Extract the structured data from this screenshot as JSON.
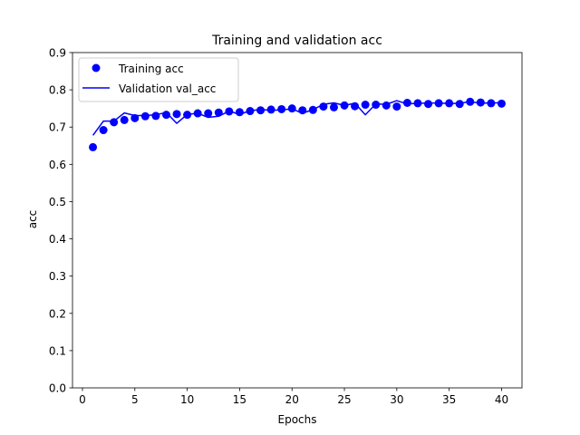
{
  "chart_data": {
    "type": "line",
    "title": "Training and validation acc",
    "xlabel": "Epochs",
    "ylabel": "acc",
    "xlim": [
      -0.95,
      41.95
    ],
    "ylim": [
      0,
      0.9
    ],
    "xticks": [
      0,
      5,
      10,
      15,
      20,
      25,
      30,
      35,
      40
    ],
    "yticks": [
      0.0,
      0.1,
      0.2,
      0.3,
      0.4,
      0.5,
      0.6,
      0.7,
      0.8,
      0.9
    ],
    "xtick_labels": [
      "0",
      "5",
      "10",
      "15",
      "20",
      "25",
      "30",
      "35",
      "40"
    ],
    "ytick_labels": [
      "0.0",
      "0.1",
      "0.2",
      "0.3",
      "0.4",
      "0.5",
      "0.6",
      "0.7",
      "0.8",
      "0.9"
    ],
    "grid": false,
    "legend_position": "top-left",
    "x": [
      1,
      2,
      3,
      4,
      5,
      6,
      7,
      8,
      9,
      10,
      11,
      12,
      13,
      14,
      15,
      16,
      17,
      18,
      19,
      20,
      21,
      22,
      23,
      24,
      25,
      26,
      27,
      28,
      29,
      30,
      31,
      32,
      33,
      34,
      35,
      36,
      37,
      38,
      39,
      40
    ],
    "series": [
      {
        "name": "Training acc",
        "style": "markers",
        "color": "#0000ff",
        "values": [
          0.646,
          0.692,
          0.713,
          0.719,
          0.724,
          0.729,
          0.73,
          0.733,
          0.735,
          0.733,
          0.737,
          0.737,
          0.739,
          0.742,
          0.74,
          0.743,
          0.745,
          0.747,
          0.748,
          0.75,
          0.745,
          0.746,
          0.755,
          0.753,
          0.758,
          0.756,
          0.76,
          0.76,
          0.758,
          0.755,
          0.765,
          0.764,
          0.762,
          0.764,
          0.764,
          0.762,
          0.768,
          0.766,
          0.764,
          0.763
        ]
      },
      {
        "name": "Validation val_acc",
        "style": "line",
        "color": "#0000ff",
        "values": [
          0.678,
          0.716,
          0.716,
          0.738,
          0.731,
          0.731,
          0.733,
          0.739,
          0.71,
          0.734,
          0.737,
          0.726,
          0.729,
          0.743,
          0.734,
          0.744,
          0.747,
          0.745,
          0.746,
          0.749,
          0.737,
          0.747,
          0.761,
          0.765,
          0.758,
          0.764,
          0.733,
          0.762,
          0.761,
          0.771,
          0.762,
          0.764,
          0.764,
          0.765,
          0.763,
          0.764,
          0.768,
          0.764,
          0.765,
          0.765
        ]
      }
    ]
  }
}
